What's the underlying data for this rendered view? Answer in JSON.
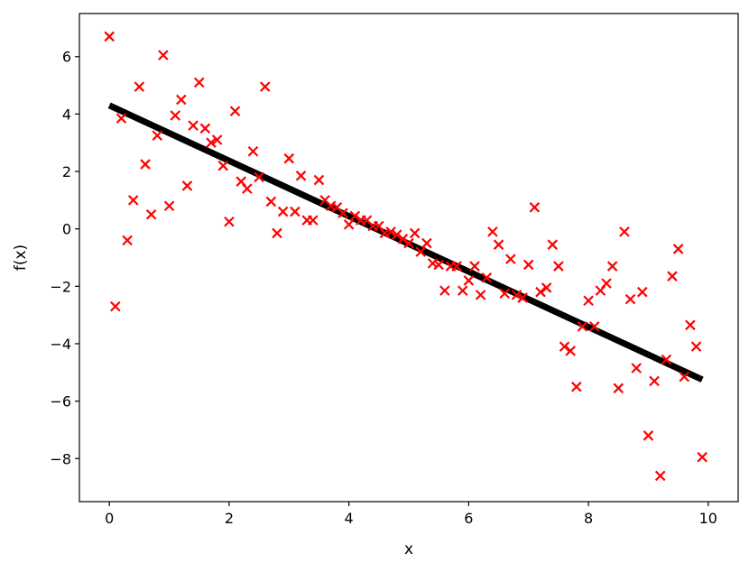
{
  "chart_data": {
    "type": "scatter",
    "title": "",
    "xlabel": "x",
    "ylabel": "f(x)",
    "xlim": [
      -0.5,
      10.5
    ],
    "ylim": [
      -9.5,
      7.5
    ],
    "xticks": [
      0,
      2,
      4,
      6,
      8,
      10
    ],
    "yticks": [
      -8,
      -6,
      -4,
      -2,
      0,
      2,
      4,
      6
    ],
    "xtick_labels": [
      "0",
      "2",
      "4",
      "6",
      "8",
      "10"
    ],
    "ytick_labels": [
      "−8",
      "−6",
      "−4",
      "−2",
      "0",
      "2",
      "4",
      "6"
    ],
    "grid": false,
    "colors": {
      "points": "#ff0000",
      "line": "#000000",
      "axes": "#000000"
    },
    "series": [
      {
        "type": "scatter",
        "marker": "x",
        "x": [
          0.0,
          0.1,
          0.2,
          0.3,
          0.4,
          0.5,
          0.6,
          0.7,
          0.8,
          0.9,
          1.0,
          1.1,
          1.2,
          1.3,
          1.4,
          1.5,
          1.6,
          1.7,
          1.8,
          1.9,
          2.0,
          2.1,
          2.2,
          2.3,
          2.4,
          2.5,
          2.6,
          2.7,
          2.8,
          2.9,
          3.0,
          3.1,
          3.2,
          3.3,
          3.4,
          3.5,
          3.6,
          3.7,
          3.8,
          3.9,
          4.0,
          4.1,
          4.2,
          4.3,
          4.4,
          4.5,
          4.6,
          4.7,
          4.8,
          4.9,
          5.0,
          5.1,
          5.2,
          5.3,
          5.4,
          5.5,
          5.6,
          5.7,
          5.8,
          5.9,
          6.0,
          6.1,
          6.2,
          6.3,
          6.4,
          6.5,
          6.6,
          6.7,
          6.8,
          6.9,
          7.0,
          7.1,
          7.2,
          7.3,
          7.4,
          7.5,
          7.6,
          7.7,
          7.8,
          7.9,
          8.0,
          8.1,
          8.2,
          8.3,
          8.4,
          8.5,
          8.6,
          8.7,
          8.8,
          8.9,
          9.0,
          9.1,
          9.2,
          9.3,
          9.4,
          9.5,
          9.6,
          9.7,
          9.8,
          9.9
        ],
        "y": [
          6.7,
          -2.7,
          3.85,
          -0.4,
          1.0,
          4.95,
          2.25,
          0.5,
          3.25,
          6.05,
          0.8,
          3.95,
          4.5,
          1.5,
          3.6,
          5.1,
          3.5,
          3.0,
          3.1,
          2.2,
          0.25,
          4.1,
          1.65,
          1.4,
          2.7,
          1.8,
          4.95,
          0.95,
          -0.15,
          0.6,
          2.45,
          0.6,
          1.85,
          0.3,
          0.3,
          1.7,
          1.0,
          0.8,
          0.75,
          0.55,
          0.15,
          0.45,
          0.3,
          0.3,
          0.1,
          0.1,
          -0.15,
          -0.1,
          -0.2,
          -0.35,
          -0.5,
          -0.15,
          -0.8,
          -0.5,
          -1.2,
          -1.25,
          -2.15,
          -1.3,
          -1.3,
          -2.15,
          -1.8,
          -1.3,
          -2.3,
          -1.7,
          -0.1,
          -0.55,
          -2.25,
          -1.05,
          -2.3,
          -2.4,
          -1.25,
          0.75,
          -2.2,
          -2.05,
          -0.55,
          -1.3,
          -4.1,
          -4.25,
          -5.5,
          -3.4,
          -2.5,
          -3.4,
          -2.15,
          -1.9,
          -1.3,
          -5.55,
          -0.1,
          -2.45,
          -4.85,
          -2.2,
          -7.2,
          -5.3,
          -8.6,
          -4.55,
          -1.65,
          -0.7,
          -5.15,
          -3.35,
          -4.1,
          -7.95
        ]
      },
      {
        "type": "line",
        "x": [
          0.0,
          9.9
        ],
        "y": [
          4.3,
          -5.25
        ]
      }
    ]
  }
}
